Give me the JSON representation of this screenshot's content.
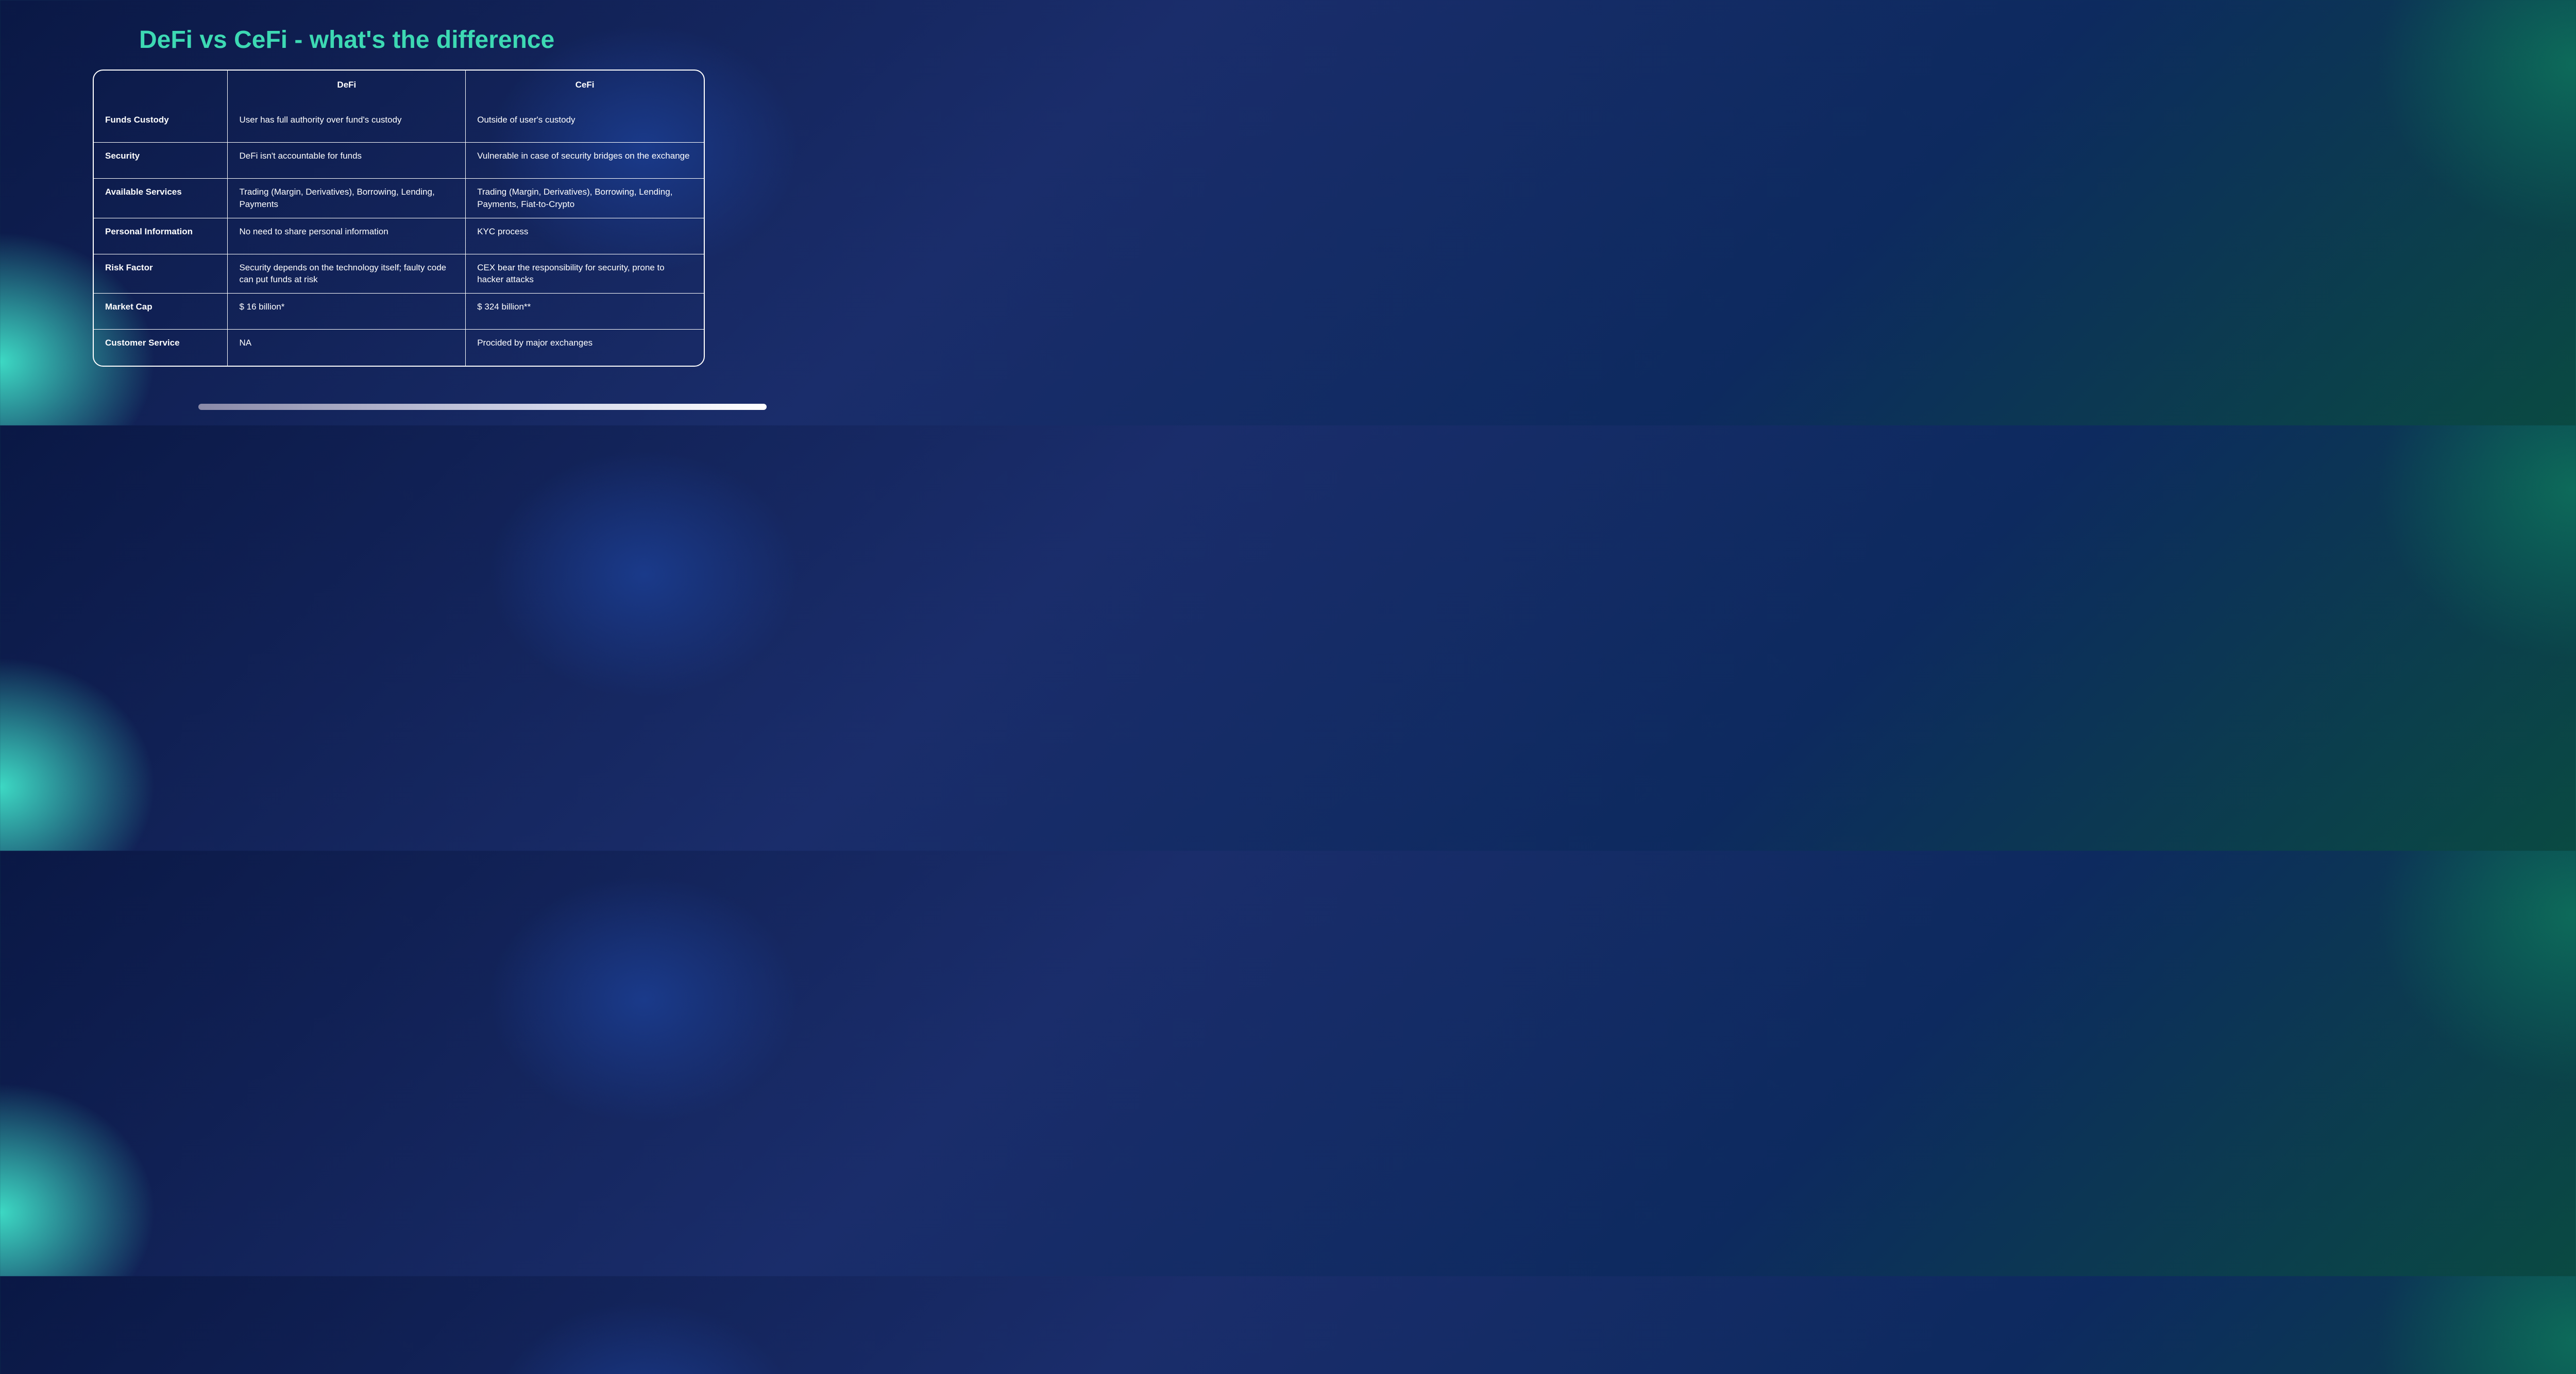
{
  "title": "DeFi vs CeFi - what's the difference",
  "title_color": "#3dd9b3",
  "table": {
    "border_color": "#ffffff",
    "border_radius": 20,
    "columns": [
      "",
      "DeFi",
      "CeFi"
    ],
    "rows": [
      {
        "label": "Funds Custody",
        "defi": "User has full authority over fund's custody",
        "cefi": "Outside of user's custody"
      },
      {
        "label": "Security",
        "defi": "DeFi isn't accountable for funds",
        "cefi": "Vulnerable in case of security bridges on the exchange"
      },
      {
        "label": "Available Services",
        "defi": "Trading (Margin, Derivatives), Borrowing, Lending, Payments",
        "cefi": "Trading (Margin, Derivatives), Borrowing, Lending, Payments, Fiat-to-Crypto"
      },
      {
        "label": "Personal Information",
        "defi": "No need to share personal information",
        "cefi": "KYC process"
      },
      {
        "label": "Risk Factor",
        "defi": "Security depends on the technology itself; faulty code can put funds at risk",
        "cefi": "CEX bear the responsibility for security, prone to hacker attacks"
      },
      {
        "label": "Market Cap",
        "defi": "$ 16 billion*",
        "cefi": "$ 324 billion**"
      },
      {
        "label": "Customer Service",
        "defi": "NA",
        "cefi": "Procided by major exchanges"
      }
    ]
  },
  "background": {
    "gradient_colors": [
      "#0a1845",
      "#1a2d6b",
      "#0d2a5f",
      "#0a4a42"
    ],
    "glow_left": "#3dd9c4",
    "glow_right": "#0d6b5a"
  },
  "bottom_bar": {
    "gradient": [
      "#8a8aa8",
      "#d0d4e8",
      "#ffffff"
    ]
  }
}
